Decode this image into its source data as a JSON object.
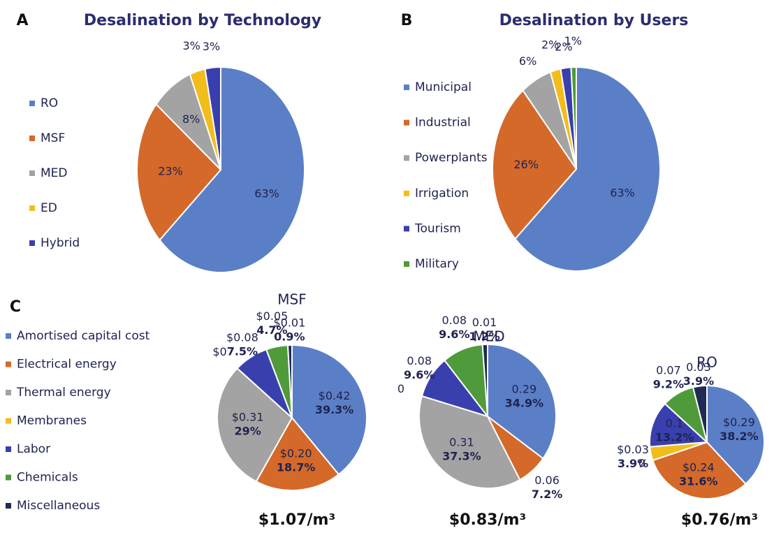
{
  "chart_data": [
    {
      "type": "pie",
      "panel_label": "A",
      "title": "Desalination by Technology",
      "categories": [
        "RO",
        "MSF",
        "MED",
        "ED",
        "Hybrid"
      ],
      "values": [
        63,
        23,
        8,
        3,
        3
      ],
      "value_labels": [
        "63%",
        "23%",
        "8%",
        "3%",
        "3%"
      ],
      "colors": [
        "#5b7fc6",
        "#d4692a",
        "#a3a3a3",
        "#f2bd1b",
        "#3a3fae"
      ]
    },
    {
      "type": "pie",
      "panel_label": "B",
      "title": "Desalination by Users",
      "categories": [
        "Municipal",
        "Industrial",
        "Powerplants",
        "Irrigation",
        "Tourism",
        "Military"
      ],
      "values": [
        63,
        26,
        6,
        2,
        2,
        1
      ],
      "value_labels": [
        "63%",
        "26%",
        "6%",
        "2%",
        "2%",
        "1%"
      ],
      "colors": [
        "#5b7fc6",
        "#d4692a",
        "#a3a3a3",
        "#f2bd1b",
        "#3a3fae",
        "#4f9a3a"
      ]
    },
    {
      "type": "pie",
      "panel_label": "C",
      "title": "MSF",
      "total_label": "$1.07/m³",
      "categories": [
        "Amortised capital cost",
        "Electrical energy",
        "Thermal energy",
        "Membranes",
        "Labor",
        "Chemicals",
        "Miscellaneous"
      ],
      "values": [
        39.3,
        18.7,
        29,
        0,
        7.5,
        4.7,
        0.9
      ],
      "value_labels": [
        "39.3%",
        "18.7%",
        "29%",
        null,
        "7.5%",
        "4.7%",
        "0.9%"
      ],
      "cost_labels": [
        "$0.42",
        "$0.20",
        "$0.31",
        "$0",
        "$0.08",
        "$0.05",
        "$0.01"
      ],
      "colors": [
        "#5b7fc6",
        "#d4692a",
        "#a3a3a3",
        "#f2bd1b",
        "#3a3fae",
        "#4f9a3a",
        "#1f2a55"
      ]
    },
    {
      "type": "pie",
      "title": "MED",
      "total_label": "$0.83/m³",
      "values": [
        34.9,
        7.2,
        37.3,
        0,
        9.6,
        9.6,
        1.2
      ],
      "value_labels": [
        "34.9%",
        "7.2%",
        "37.3%",
        null,
        "9.6%",
        "9.6%",
        "1.2%"
      ],
      "cost_labels": [
        "0.29",
        "0.06",
        "0.31",
        "0",
        "0.08",
        "0.08",
        "0.01"
      ],
      "colors": [
        "#5b7fc6",
        "#d4692a",
        "#a3a3a3",
        "#f2bd1b",
        "#3a3fae",
        "#4f9a3a",
        "#1f2a55"
      ]
    },
    {
      "type": "pie",
      "title": "RO",
      "total_label": "$0.76/m³",
      "values": [
        38.2,
        31.6,
        0,
        3.9,
        13.2,
        9.2,
        3.9
      ],
      "value_labels": [
        "38.2%",
        "31.6%",
        null,
        "3.9%",
        "13.2%",
        "9.2%",
        "3.9%"
      ],
      "cost_labels": [
        "$0.29",
        "$0.24",
        "0",
        "$0.03",
        "0.1",
        "0.07",
        "0.03"
      ],
      "colors": [
        "#5b7fc6",
        "#d4692a",
        "#a3a3a3",
        "#f2bd1b",
        "#3a3fae",
        "#4f9a3a",
        "#1f2a55"
      ]
    }
  ]
}
